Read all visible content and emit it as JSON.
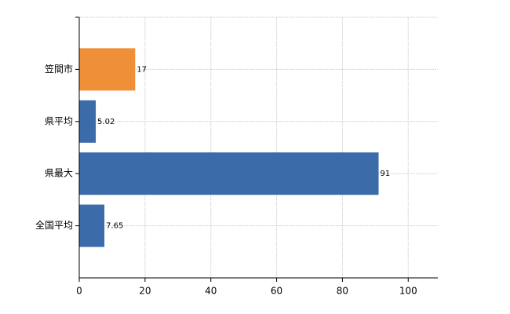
{
  "chart_data": {
    "type": "bar",
    "orientation": "horizontal",
    "categories": [
      "笠間市",
      "県平均",
      "県最大",
      "全国平均"
    ],
    "values": [
      17,
      5.02,
      91,
      7.65
    ],
    "colors": [
      "#ef8f38",
      "#3b6ba8",
      "#3b6ba8",
      "#3b6ba8"
    ],
    "xlim": [
      0,
      109
    ],
    "xticks": [
      0,
      20,
      40,
      60,
      80,
      100
    ],
    "grid": true
  }
}
